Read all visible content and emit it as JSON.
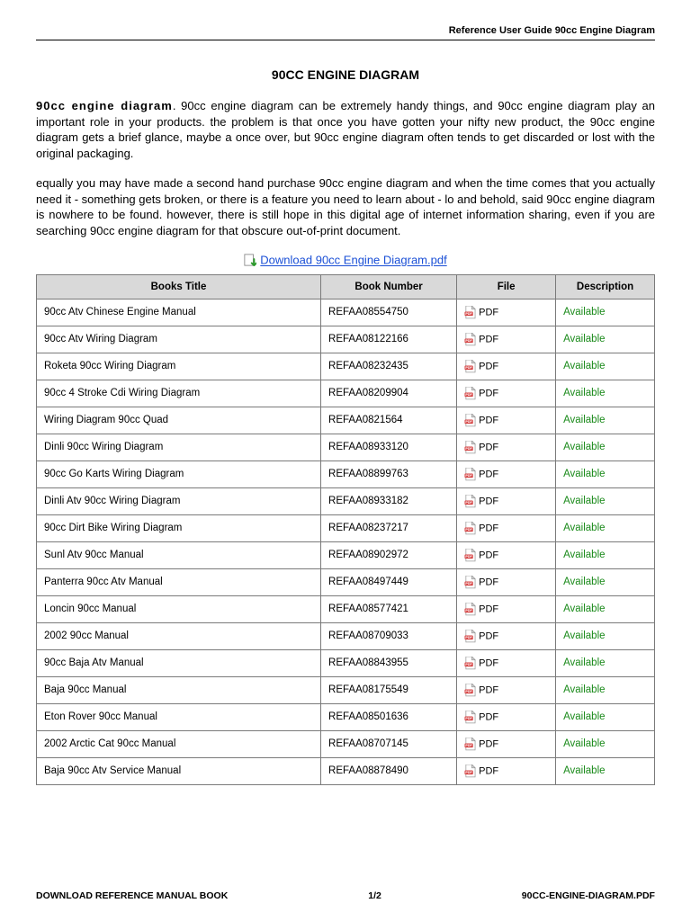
{
  "header": {
    "right": "Reference User Guide 90cc Engine Diagram"
  },
  "title": "90CC ENGINE DIAGRAM",
  "intro": {
    "lead": "90cc engine diagram",
    "rest": ". 90cc engine diagram can be extremely handy things, and 90cc engine diagram play an important role in your products. the problem is that once you have gotten your nifty new product, the 90cc engine diagram gets a brief glance, maybe a once over, but 90cc engine diagram often tends to get discarded or lost with the original packaging."
  },
  "para2": "equally you may have made a second hand purchase 90cc engine diagram and when the time comes that you actually need it - something gets broken, or there is a feature you need to learn about - lo and behold, said 90cc engine diagram is nowhere to be found. however, there is still hope in this digital age of internet information sharing, even if you are searching 90cc engine diagram for that obscure out-of-print document.",
  "download": {
    "label": "Download 90cc Engine Diagram.pdf"
  },
  "table": {
    "headers": {
      "title": "Books Title",
      "number": "Book Number",
      "file": "File",
      "desc": "Description"
    },
    "file_label": "PDF",
    "desc_label": "Available",
    "rows": [
      {
        "title": "90cc Atv Chinese Engine Manual",
        "num": "REFAA08554750"
      },
      {
        "title": "90cc Atv Wiring Diagram",
        "num": "REFAA08122166"
      },
      {
        "title": "Roketa 90cc Wiring Diagram",
        "num": "REFAA08232435"
      },
      {
        "title": "90cc 4 Stroke Cdi Wiring Diagram",
        "num": "REFAA08209904"
      },
      {
        "title": "Wiring Diagram 90cc Quad",
        "num": "REFAA0821564"
      },
      {
        "title": "Dinli 90cc Wiring Diagram",
        "num": "REFAA08933120"
      },
      {
        "title": "90cc Go Karts Wiring Diagram",
        "num": "REFAA08899763"
      },
      {
        "title": "Dinli Atv 90cc Wiring Diagram",
        "num": "REFAA08933182"
      },
      {
        "title": "90cc Dirt Bike Wiring Diagram",
        "num": "REFAA08237217"
      },
      {
        "title": "Sunl Atv 90cc Manual",
        "num": "REFAA08902972"
      },
      {
        "title": "Panterra 90cc Atv Manual",
        "num": "REFAA08497449"
      },
      {
        "title": "Loncin 90cc Manual",
        "num": "REFAA08577421"
      },
      {
        "title": "2002 90cc Manual",
        "num": "REFAA08709033"
      },
      {
        "title": "90cc Baja Atv Manual",
        "num": "REFAA08843955"
      },
      {
        "title": "Baja 90cc Manual",
        "num": "REFAA08175549"
      },
      {
        "title": "Eton Rover 90cc Manual",
        "num": "REFAA08501636"
      },
      {
        "title": "2002 Arctic Cat 90cc Manual",
        "num": "REFAA08707145"
      },
      {
        "title": "Baja 90cc Atv Service Manual",
        "num": "REFAA08878490"
      }
    ]
  },
  "footer": {
    "left": "DOWNLOAD REFERENCE MANUAL BOOK",
    "center": "1/2",
    "right": "90CC-ENGINE-DIAGRAM.PDF"
  },
  "colors": {
    "link": "#1a4fd6",
    "available": "#1a8a1a",
    "th_bg": "#d9d9d9",
    "border": "#7a7a7a",
    "pdf_red": "#d64545",
    "dl_green": "#2a9a2a"
  }
}
